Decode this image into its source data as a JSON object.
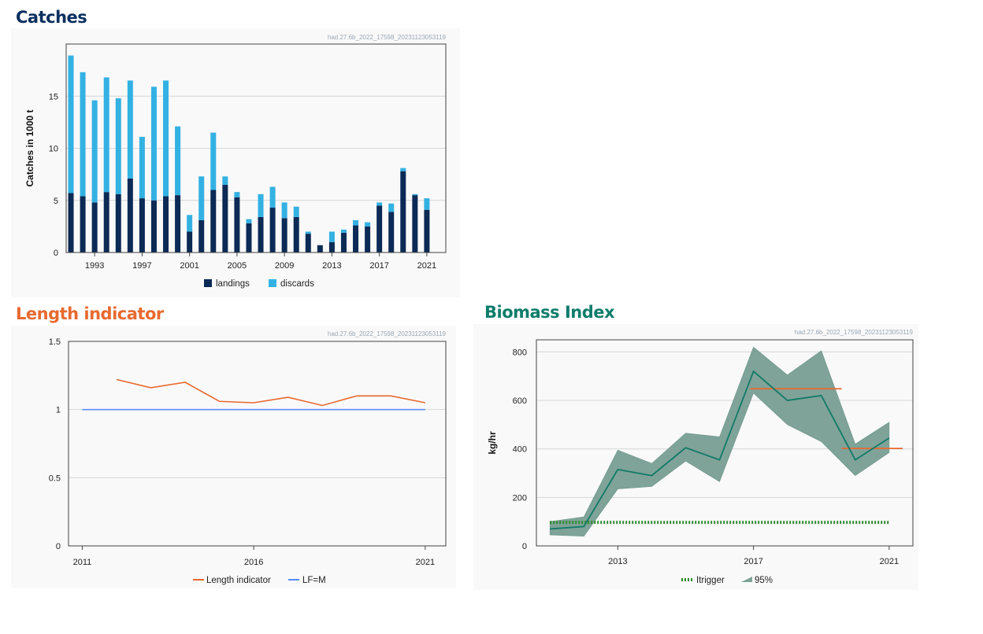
{
  "headings": {
    "catches": "Catches",
    "length": "Length indicator",
    "biomass": "Biomass Index"
  },
  "colors": {
    "landings": "#0b2a55",
    "discards": "#33b1e3",
    "length_indicator": "#e8692f",
    "lfm": "#5b8cff",
    "biomass_line": "#127a68",
    "band": "#7fa398",
    "itrigger": "#2f8a2f",
    "mean_bar": "#e8692f"
  },
  "chart_data": [
    {
      "type": "bar",
      "stacked": true,
      "source_label": "had.27.6b_2022_17598_20231123053119",
      "ylabel": "Catches in 1000 t",
      "ylim": [
        0,
        20
      ],
      "yticks": [
        0,
        5,
        10,
        15
      ],
      "xlim": [
        1990.6,
        2022.6
      ],
      "xticks": [
        1993,
        1997,
        2001,
        2005,
        2009,
        2013,
        2017,
        2021
      ],
      "categories": [
        1991,
        1992,
        1993,
        1994,
        1995,
        1996,
        1997,
        1998,
        1999,
        2000,
        2001,
        2002,
        2003,
        2004,
        2005,
        2006,
        2007,
        2008,
        2009,
        2010,
        2011,
        2012,
        2013,
        2014,
        2015,
        2016,
        2017,
        2018,
        2019,
        2020,
        2021
      ],
      "series": [
        {
          "name": "landings",
          "values": [
            5.7,
            5.4,
            4.8,
            5.8,
            5.6,
            7.1,
            5.2,
            5.0,
            5.4,
            5.5,
            2.0,
            3.1,
            6.0,
            6.5,
            5.3,
            2.8,
            3.4,
            4.3,
            3.3,
            3.4,
            1.8,
            0.7,
            1.0,
            1.9,
            2.6,
            2.5,
            4.5,
            3.9,
            7.8,
            5.5,
            4.1
          ]
        },
        {
          "name": "discards",
          "values": [
            13.2,
            11.9,
            9.8,
            11.0,
            9.2,
            9.4,
            5.9,
            10.9,
            11.1,
            6.6,
            1.6,
            4.2,
            5.5,
            0.8,
            0.5,
            0.4,
            2.2,
            2.0,
            1.5,
            1.0,
            0.2,
            0.0,
            1.0,
            0.3,
            0.5,
            0.4,
            0.3,
            0.8,
            0.3,
            0.1,
            1.1
          ]
        }
      ],
      "legend": [
        "landings",
        "discards"
      ],
      "legend_position": "bottom"
    },
    {
      "type": "line",
      "source_label": "had.27.6b_2022_17598_20231123053119",
      "ylim": [
        0,
        1.5
      ],
      "yticks": [
        "0",
        "0.5",
        "1",
        "1.5"
      ],
      "xlim": [
        2010.6,
        2021.6
      ],
      "xticks": [
        2011,
        2016,
        2021
      ],
      "series": [
        {
          "name": "Length indicator",
          "x": [
            2012,
            2013,
            2014,
            2015,
            2016,
            2017,
            2018,
            2019,
            2020,
            2021
          ],
          "y": [
            1.22,
            1.16,
            1.2,
            1.06,
            1.05,
            1.09,
            1.03,
            1.1,
            1.1,
            1.05
          ]
        },
        {
          "name": "LF=M",
          "x": [
            2011,
            2021
          ],
          "y": [
            1.0,
            1.0
          ]
        }
      ],
      "legend": [
        "Length indicator",
        "LF=M"
      ],
      "legend_position": "bottom"
    },
    {
      "type": "line",
      "source_label": "had.27.6b_2022_17598_20231123053119",
      "ylabel": "kg/hr",
      "ylim": [
        0,
        850
      ],
      "yticks": [
        0,
        200,
        400,
        600,
        800
      ],
      "xlim": [
        2010.6,
        2021.7
      ],
      "xticks": [
        2013,
        2017,
        2021
      ],
      "series": [
        {
          "name": "index",
          "x": [
            2011,
            2012,
            2013,
            2014,
            2015,
            2016,
            2017,
            2018,
            2019,
            2020,
            2021
          ],
          "y": [
            70,
            80,
            315,
            290,
            405,
            355,
            720,
            600,
            620,
            355,
            445
          ]
        },
        {
          "name": "95%",
          "x": [
            2011,
            2012,
            2013,
            2014,
            2015,
            2016,
            2017,
            2018,
            2019,
            2020,
            2021
          ],
          "lower": [
            45,
            40,
            235,
            245,
            350,
            265,
            630,
            500,
            430,
            290,
            385
          ],
          "upper": [
            100,
            120,
            395,
            340,
            465,
            450,
            820,
            705,
            805,
            420,
            510
          ]
        },
        {
          "name": "Itrigger",
          "x": [
            2011,
            2021
          ],
          "y": [
            97,
            97
          ]
        },
        {
          "name": "mean_2017_2019",
          "x": [
            2016.9,
            2019.6
          ],
          "y": [
            648,
            648
          ]
        },
        {
          "name": "mean_2020_2021",
          "x": [
            2019.6,
            2021.4
          ],
          "y": [
            402,
            402
          ]
        }
      ],
      "legend": [
        "Itrigger",
        "95%"
      ],
      "legend_position": "bottom"
    }
  ]
}
